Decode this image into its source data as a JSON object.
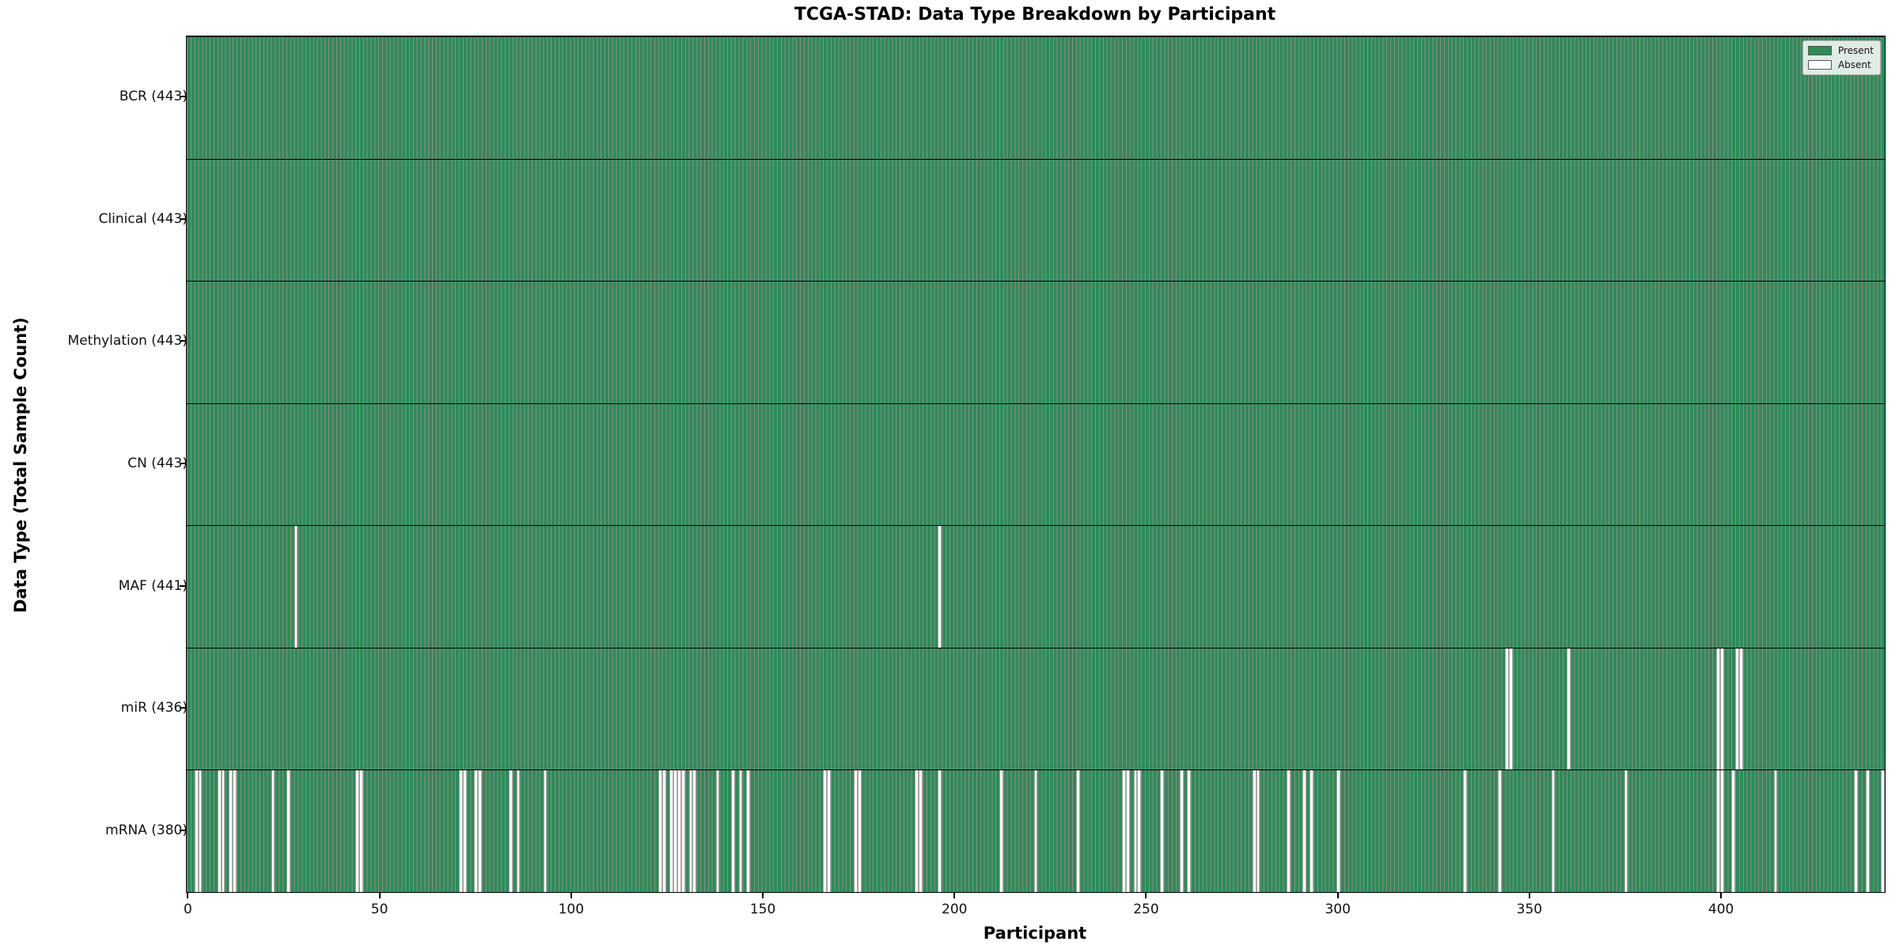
{
  "title": "TCGA-STAD: Data Type Breakdown by Participant",
  "legend": {
    "present_label": "Present",
    "absent_label": "Absent"
  },
  "colors": {
    "present": "#2e8b57",
    "absent": "#ffffff",
    "bar_edge": "rgba(0,0,0,0.45)",
    "axis": "#000000"
  },
  "chart_data": {
    "type": "heatmap",
    "title": "TCGA-STAD: Data Type Breakdown by Participant",
    "xlabel": "Participant",
    "ylabel": "Data Type (Total Sample Count)",
    "legend_position": "upper right",
    "grid": false,
    "n_participants": 443,
    "xlim": [
      -0.5,
      442.5
    ],
    "x_ticks": [
      0,
      50,
      100,
      150,
      200,
      250,
      300,
      350,
      400
    ],
    "legend_entries": [
      {
        "label": "Present",
        "color": "#2e8b57"
      },
      {
        "label": "Absent",
        "color": "#ffffff"
      }
    ],
    "rows": [
      {
        "name": "BCR",
        "label": "BCR (443)",
        "present_count": 443,
        "absent_participants": []
      },
      {
        "name": "Clinical",
        "label": "Clinical (443)",
        "present_count": 443,
        "absent_participants": []
      },
      {
        "name": "Methylation",
        "label": "Methylation (443)",
        "present_count": 443,
        "absent_participants": []
      },
      {
        "name": "CN",
        "label": "CN (443)",
        "present_count": 443,
        "absent_participants": []
      },
      {
        "name": "MAF",
        "label": "MAF (441)",
        "present_count": 441,
        "absent_participants": [
          28,
          196
        ]
      },
      {
        "name": "miR",
        "label": "miR (436)",
        "present_count": 436,
        "absent_participants": [
          344,
          345,
          360,
          399,
          400,
          404,
          405
        ]
      },
      {
        "name": "mRNA",
        "label": "mRNA (380)",
        "present_count": 380,
        "absent_participants": [
          2,
          3,
          8,
          9,
          11,
          12,
          22,
          26,
          44,
          45,
          71,
          72,
          75,
          76,
          84,
          86,
          93,
          123,
          124,
          126,
          127,
          128,
          129,
          131,
          132,
          138,
          142,
          144,
          146,
          166,
          167,
          174,
          175,
          190,
          191,
          196,
          212,
          221,
          232,
          244,
          245,
          247,
          248,
          254,
          259,
          261,
          278,
          279,
          287,
          291,
          293,
          300,
          333,
          342,
          356,
          375,
          399,
          400,
          403,
          414,
          435,
          438,
          442
        ]
      }
    ]
  }
}
